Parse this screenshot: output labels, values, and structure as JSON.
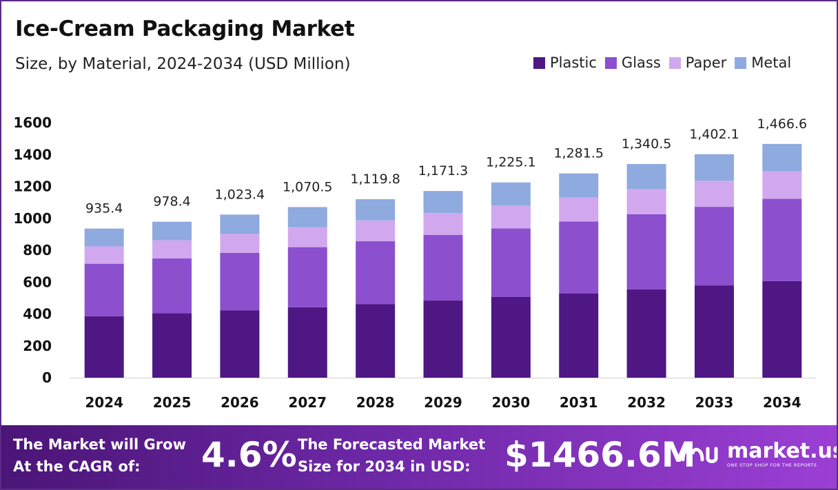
{
  "colors": {
    "plastic": "#4e1784",
    "glass": "#8c4fce",
    "paper": "#d1a8ee",
    "metal": "#8eaadf",
    "frame": "#5b2a86"
  },
  "chart_data": {
    "type": "bar",
    "stacked": true,
    "title": "Ice-Cream Packaging Market",
    "subtitle": "Size, by Material, 2024-2034 (USD Million)",
    "categories": [
      "2024",
      "2025",
      "2026",
      "2027",
      "2028",
      "2029",
      "2030",
      "2031",
      "2032",
      "2033",
      "2034"
    ],
    "series": [
      {
        "name": "Plastic",
        "values": [
          386,
          404,
          423,
          442,
          462,
          484,
          506,
          529,
          554,
          579,
          606
        ]
      },
      {
        "name": "Glass",
        "values": [
          329,
          344,
          360,
          377,
          394,
          412,
          431,
          451,
          472,
          493,
          516
        ]
      },
      {
        "name": "Paper",
        "values": [
          109,
          114,
          119,
          125,
          131,
          137,
          143,
          150,
          157,
          164,
          172
        ]
      },
      {
        "name": "Metal",
        "values": [
          111.4,
          116.4,
          121.4,
          126.5,
          132.8,
          138.3,
          145.1,
          151.5,
          157.5,
          166.1,
          172.6
        ]
      }
    ],
    "totals": [
      "935.4",
      "978.4",
      "1,023.4",
      "1,070.5",
      "1,119.8",
      "1,171.3",
      "1,225.1",
      "1,281.5",
      "1,340.5",
      "1,402.1",
      "1,466.6"
    ],
    "yticks": [
      "0",
      "200",
      "400",
      "600",
      "800",
      "1000",
      "1200",
      "1400",
      "1600"
    ],
    "ylim": [
      0,
      1600
    ],
    "grid": false,
    "legend": "top-right"
  },
  "legend": {
    "items": [
      {
        "label": "Plastic"
      },
      {
        "label": "Glass"
      },
      {
        "label": "Paper"
      },
      {
        "label": "Metal"
      }
    ]
  },
  "footer": {
    "cagr_label_line1": "The Market will Grow",
    "cagr_label_line2": "At the CAGR of:",
    "cagr_value": "4.6%",
    "forecast_label_line1": "The Forecasted Market",
    "forecast_label_line2": "Size for 2034 in USD:",
    "forecast_value": "$1466.6M",
    "brand_name": "market.us",
    "brand_tagline": "ONE STOP SHOP FOR THE REPORTS"
  }
}
